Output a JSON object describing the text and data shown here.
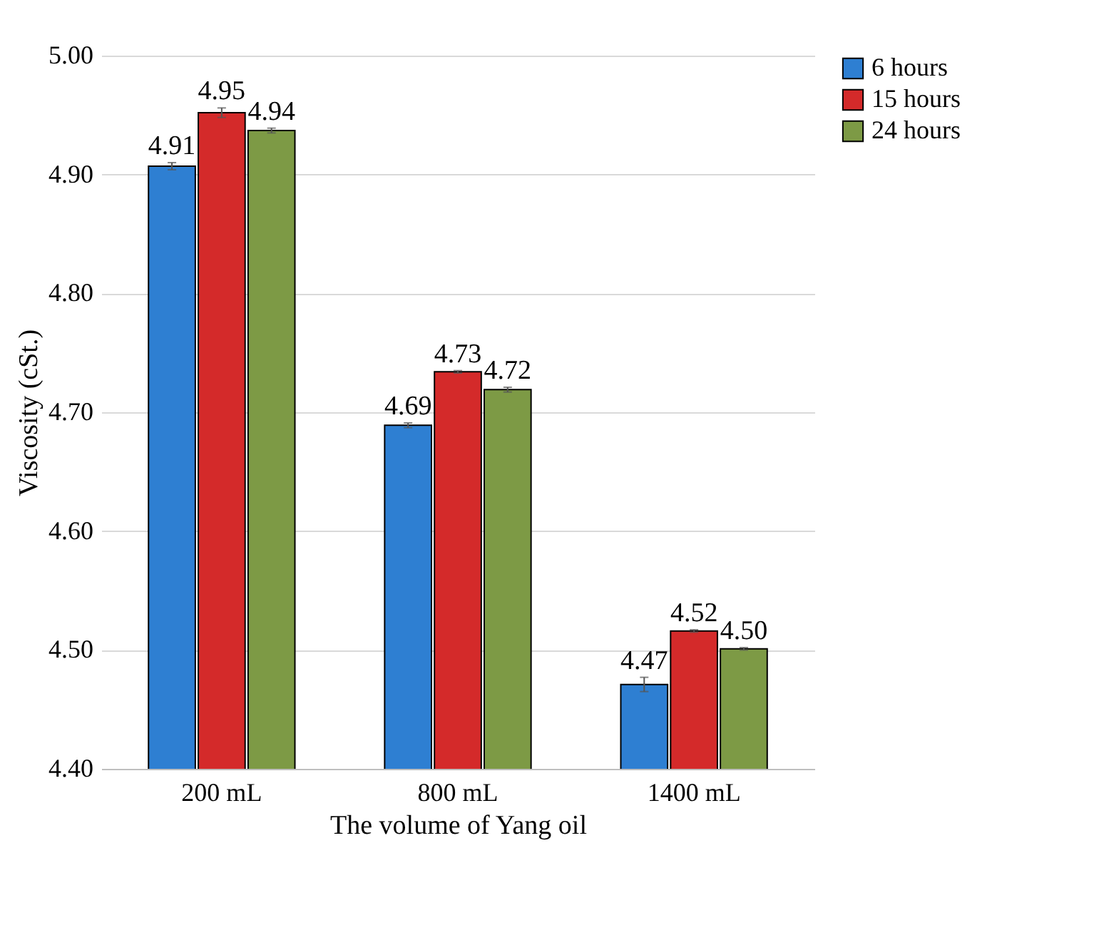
{
  "chart_data": {
    "type": "bar",
    "xlabel": "The volume of Yang oil",
    "ylabel": "Viscosity (cSt.)",
    "categories": [
      "200 mL",
      "800 mL",
      "1400 mL"
    ],
    "series": [
      {
        "name": "6 hours",
        "color": "#2e7fd2",
        "values": [
          4.907,
          4.689,
          4.471
        ],
        "errors": [
          0.003,
          0.002,
          0.006
        ],
        "value_labels": [
          "4.91",
          "4.69",
          "4.47"
        ]
      },
      {
        "name": "15 hours",
        "color": "#d42a2a",
        "values": [
          4.952,
          4.734,
          4.516
        ],
        "errors": [
          0.004,
          0.001,
          0.001
        ],
        "value_labels": [
          "4.95",
          "4.73",
          "4.52"
        ]
      },
      {
        "name": "24 hours",
        "color": "#7d9a45",
        "values": [
          4.937,
          4.719,
          4.501
        ],
        "errors": [
          0.002,
          0.002,
          0.001
        ],
        "value_labels": [
          "4.94",
          "4.72",
          "4.50"
        ]
      }
    ],
    "ylim": [
      4.4,
      5.0
    ],
    "yticks": [
      {
        "value": 4.4,
        "label": "4.40"
      },
      {
        "value": 4.5,
        "label": "4.50"
      },
      {
        "value": 4.6,
        "label": "4.60"
      },
      {
        "value": 4.7,
        "label": "4.70"
      },
      {
        "value": 4.8,
        "label": "4.80"
      },
      {
        "value": 4.9,
        "label": "4.90"
      },
      {
        "value": 5.0,
        "label": "5.00"
      }
    ],
    "grid": "y",
    "legend": "right"
  }
}
